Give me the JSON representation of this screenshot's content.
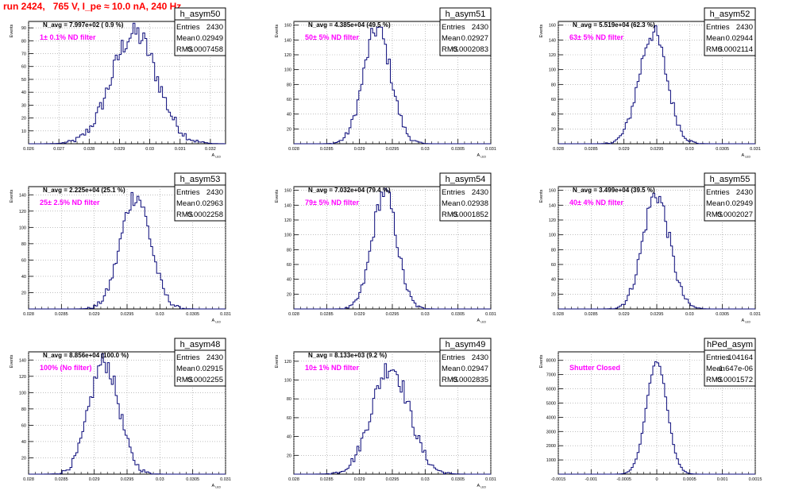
{
  "page": {
    "title": "run 2424,   765 V, I_pe ≈ 10.0 nA, 240 Hz"
  },
  "colors": {
    "histogram_line": "#0a0a7a",
    "filter_label": "#ff00ff",
    "title": "#ff0000",
    "grid": "#999999"
  },
  "chart_data": [
    {
      "type": "histogram",
      "name": "h_asym50",
      "stats": {
        "Entries": "2430",
        "Mean": "0.02949",
        "RMS": "0.0007458"
      },
      "navg": "N_avg = 7.997e+02 ( 0.9 %)",
      "label": "1± 0.1% ND filter",
      "ylabel": "Events",
      "xlabel": "A_LED",
      "xlim": [
        0.026,
        0.0325
      ],
      "ylim": [
        0,
        95
      ],
      "xticks": [
        "0.026",
        "0.027",
        "0.028",
        "0.029",
        "0.03",
        "0.031",
        "0.032"
      ],
      "xtick_values": [
        0.026,
        0.027,
        0.028,
        0.029,
        0.03,
        0.031,
        0.032
      ],
      "yticks": [
        10,
        20,
        30,
        40,
        50,
        60,
        70,
        80,
        90
      ],
      "gauss": {
        "mean": 0.02949,
        "sigma": 0.0007458,
        "peak": 86
      }
    },
    {
      "type": "histogram",
      "name": "h_asym51",
      "stats": {
        "Entries": "2430",
        "Mean": "0.02927",
        "RMS": "0.0002083"
      },
      "navg": "N_avg = 4.385e+04 (49.5 %)",
      "label": "50± 5% ND filter",
      "ylabel": "Events",
      "xlabel": "A_LED",
      "xlim": [
        0.028,
        0.031
      ],
      "ylim": [
        0,
        165
      ],
      "xticks": [
        "0.028",
        "0.0285",
        "0.029",
        "0.0295",
        "0.03",
        "0.0305",
        "0.031"
      ],
      "xtick_values": [
        0.028,
        0.0285,
        0.029,
        0.0295,
        0.03,
        0.0305,
        0.031
      ],
      "yticks": [
        20,
        40,
        60,
        80,
        100,
        120,
        140,
        160
      ],
      "gauss": {
        "mean": 0.02927,
        "sigma": 0.0002083,
        "peak": 155
      }
    },
    {
      "type": "histogram",
      "name": "h_asym52",
      "stats": {
        "Entries": "2430",
        "Mean": "0.02944",
        "RMS": "0.0002114"
      },
      "navg": "N_avg = 5.519e+04 (62.3 %)",
      "label": "63± 5% ND filter",
      "ylabel": "Events",
      "xlabel": "A_LED",
      "xlim": [
        0.028,
        0.031
      ],
      "ylim": [
        0,
        165
      ],
      "xticks": [
        "0.028",
        "0.0285",
        "0.029",
        "0.0295",
        "0.03",
        "0.0305",
        "0.031"
      ],
      "xtick_values": [
        0.028,
        0.0285,
        0.029,
        0.0295,
        0.03,
        0.0305,
        0.031
      ],
      "yticks": [
        20,
        40,
        60,
        80,
        100,
        120,
        140,
        160
      ],
      "gauss": {
        "mean": 0.02944,
        "sigma": 0.0002114,
        "peak": 150
      }
    },
    {
      "type": "histogram",
      "name": "h_asym53",
      "stats": {
        "Entries": "2430",
        "Mean": "0.02963",
        "RMS": "0.0002258"
      },
      "navg": "N_avg = 2.225e+04 (25.1 %)",
      "label": "25± 2.5% ND filter",
      "ylabel": "Events",
      "xlabel": "A_LED",
      "xlim": [
        0.028,
        0.031
      ],
      "ylim": [
        0,
        150
      ],
      "xticks": [
        "0.028",
        "0.0285",
        "0.029",
        "0.0295",
        "0.03",
        "0.0305",
        "0.031"
      ],
      "xtick_values": [
        0.028,
        0.0285,
        0.029,
        0.0295,
        0.03,
        0.0305,
        0.031
      ],
      "yticks": [
        20,
        40,
        60,
        80,
        100,
        120,
        140
      ],
      "gauss": {
        "mean": 0.02963,
        "sigma": 0.0002258,
        "peak": 140
      }
    },
    {
      "type": "histogram",
      "name": "h_asym54",
      "stats": {
        "Entries": "2430",
        "Mean": "0.02938",
        "RMS": "0.0001852"
      },
      "navg": "N_avg = 7.032e+04 (79.4 %)",
      "label": "79± 5% ND filter",
      "ylabel": "Events",
      "xlabel": "A_LED",
      "xlim": [
        0.028,
        0.031
      ],
      "ylim": [
        0,
        165
      ],
      "xticks": [
        "0.028",
        "0.0285",
        "0.029",
        "0.0295",
        "0.03",
        "0.0305",
        "0.031"
      ],
      "xtick_values": [
        0.028,
        0.0285,
        0.029,
        0.0295,
        0.03,
        0.0305,
        0.031
      ],
      "yticks": [
        20,
        40,
        60,
        80,
        100,
        120,
        140,
        160
      ],
      "gauss": {
        "mean": 0.02938,
        "sigma": 0.0001852,
        "peak": 158
      }
    },
    {
      "type": "histogram",
      "name": "h_asym55",
      "stats": {
        "Entries": "2430",
        "Mean": "0.02949",
        "RMS": "0.0002027"
      },
      "navg": "N_avg = 3.499e+04 (39.5 %)",
      "label": "40± 4% ND filter",
      "ylabel": "Events",
      "xlabel": "A_LED",
      "xlim": [
        0.028,
        0.031
      ],
      "ylim": [
        0,
        165
      ],
      "xticks": [
        "0.028",
        "0.0285",
        "0.029",
        "0.0295",
        "0.03",
        "0.0305",
        "0.031"
      ],
      "xtick_values": [
        0.028,
        0.0285,
        0.029,
        0.0295,
        0.03,
        0.0305,
        0.031
      ],
      "yticks": [
        20,
        40,
        60,
        80,
        100,
        120,
        140,
        160
      ],
      "gauss": {
        "mean": 0.02949,
        "sigma": 0.0002027,
        "peak": 155
      }
    },
    {
      "type": "histogram",
      "name": "h_asym48",
      "stats": {
        "Entries": "2430",
        "Mean": "0.02915",
        "RMS": "0.0002255"
      },
      "navg": "N_avg = 8.856e+04 (100.0 %)",
      "label": "100% (No filter)",
      "ylabel": "Events",
      "xlabel": "A_LED",
      "xlim": [
        0.028,
        0.031
      ],
      "ylim": [
        0,
        150
      ],
      "xticks": [
        "0.028",
        "0.0285",
        "0.029",
        "0.0295",
        "0.03",
        "0.0305",
        "0.031"
      ],
      "xtick_values": [
        0.028,
        0.0285,
        0.029,
        0.0295,
        0.03,
        0.0305,
        0.031
      ],
      "yticks": [
        20,
        40,
        60,
        80,
        100,
        120,
        140
      ],
      "gauss": {
        "mean": 0.02915,
        "sigma": 0.0002255,
        "peak": 138
      }
    },
    {
      "type": "histogram",
      "name": "h_asym49",
      "stats": {
        "Entries": "2430",
        "Mean": "0.02947",
        "RMS": "0.0002835"
      },
      "navg": "N_avg = 8.133e+03 (9.2 %)",
      "label": "10± 1% ND filter",
      "ylabel": "Events",
      "xlabel": "A_LED",
      "xlim": [
        0.028,
        0.031
      ],
      "ylim": [
        0,
        130
      ],
      "xticks": [
        "0.028",
        "0.0285",
        "0.029",
        "0.0295",
        "0.03",
        "0.0305",
        "0.031"
      ],
      "xtick_values": [
        0.028,
        0.0285,
        0.029,
        0.0295,
        0.03,
        0.0305,
        0.031
      ],
      "yticks": [
        20,
        40,
        60,
        80,
        100,
        120
      ],
      "gauss": {
        "mean": 0.02947,
        "sigma": 0.0002835,
        "peak": 115
      }
    },
    {
      "type": "histogram",
      "name": "hPed_asym",
      "stats": {
        "Entries": "104164",
        "Mean": "-1.647e-06",
        "RMS": "0.0001572"
      },
      "navg": "",
      "label": "Shutter Closed",
      "ylabel": "Events",
      "xlabel": "",
      "xlim": [
        -0.0015,
        0.0015
      ],
      "ylim": [
        0,
        8600
      ],
      "xticks": [
        "-0.0015",
        "-0.001",
        "-0.0005",
        "0",
        "0.0005",
        "0.001",
        "0.0015"
      ],
      "xtick_values": [
        -0.0015,
        -0.001,
        -0.0005,
        0,
        0.0005,
        0.001,
        0.0015
      ],
      "yticks": [
        1000,
        2000,
        3000,
        4000,
        5000,
        6000,
        7000,
        8000
      ],
      "gauss": {
        "mean": 0.0,
        "sigma": 0.0001572,
        "peak": 7900
      }
    }
  ]
}
